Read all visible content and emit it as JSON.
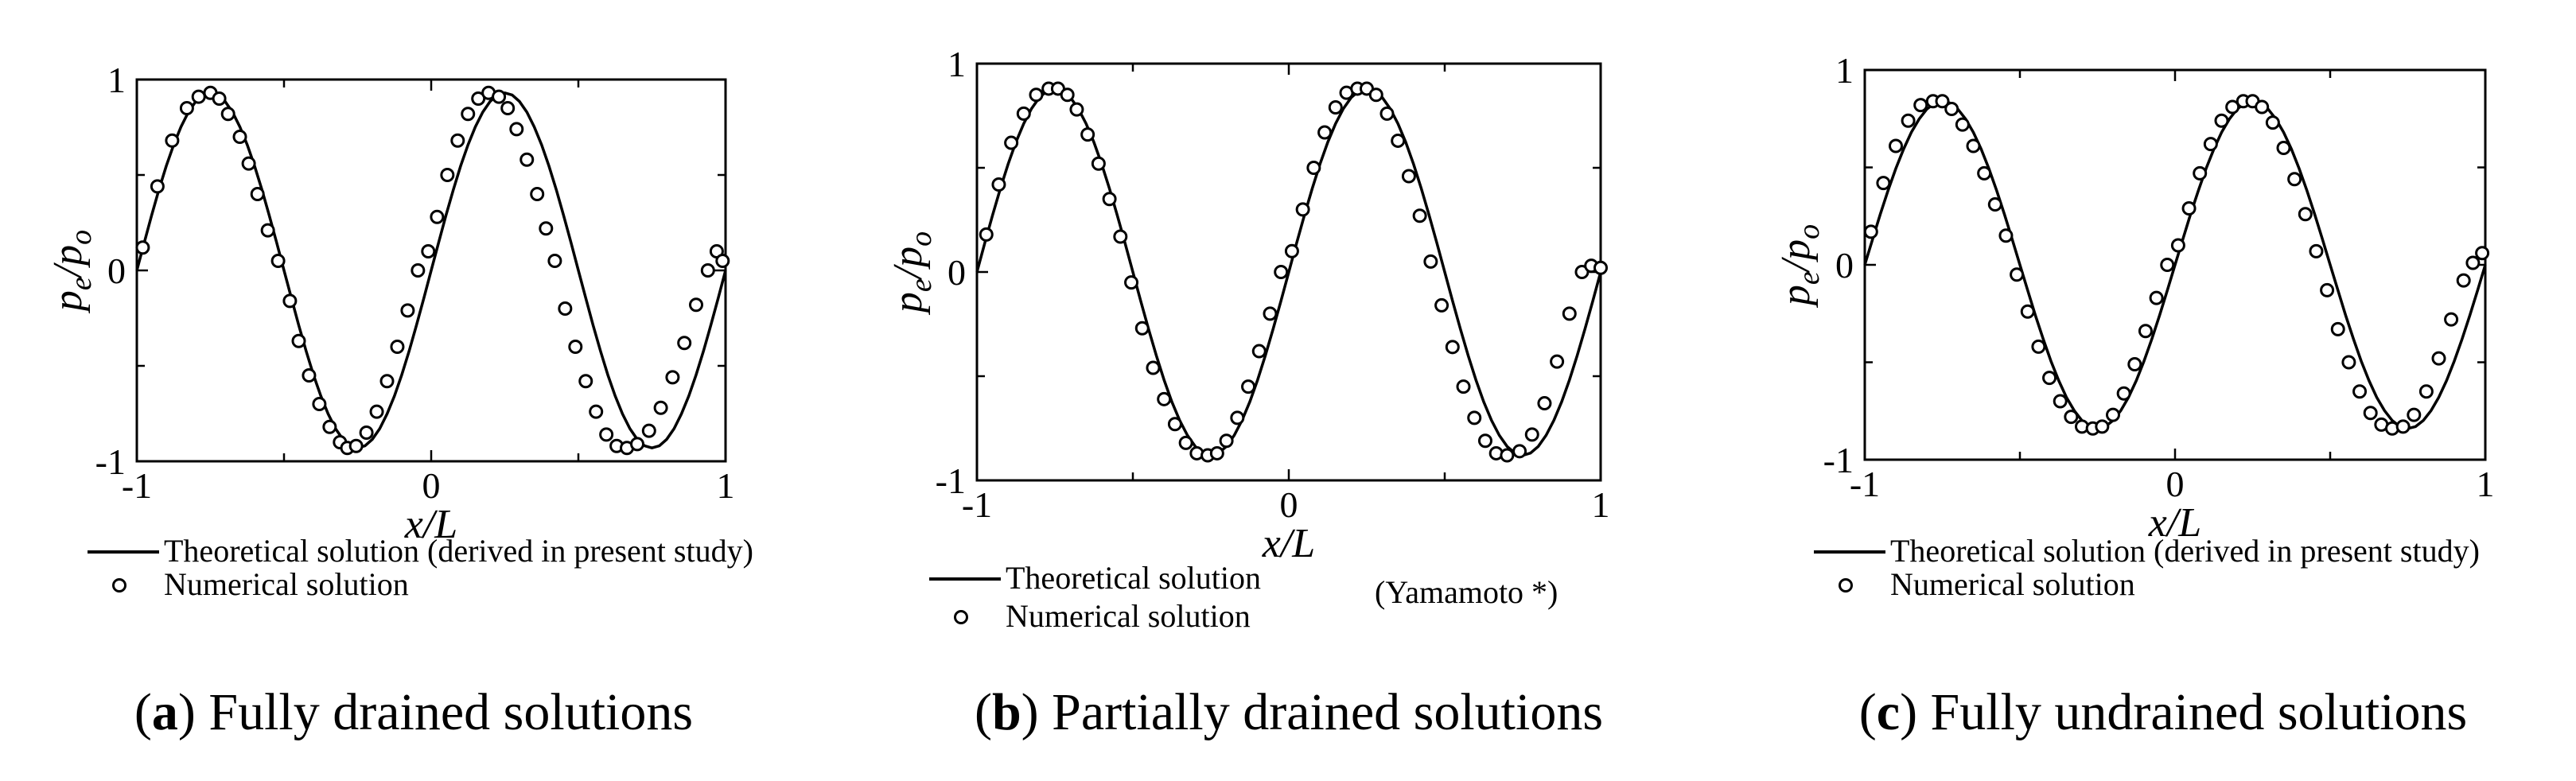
{
  "chart_data": [
    {
      "type": "line",
      "panel_label": "a",
      "caption_text": "Fully drained solutions",
      "xlabel": "x/L",
      "ylabel": "p_e/p_o",
      "xlim": [
        -1,
        1
      ],
      "ylim": [
        -1,
        1
      ],
      "xticks": [
        "-1",
        "0",
        "1"
      ],
      "yticks": [
        "-1",
        "0",
        "1"
      ],
      "amplitude": 0.93,
      "theoretical_label": "Theoretical solution (derived in present study)",
      "numerical_label": "Numerical solution",
      "series": [
        {
          "name": "Theoretical solution",
          "kind": "line",
          "x": [
            -1.0,
            -0.975,
            -0.95,
            -0.925,
            -0.9,
            -0.875,
            -0.85,
            -0.825,
            -0.8,
            -0.775,
            -0.75,
            -0.725,
            -0.7,
            -0.675,
            -0.65,
            -0.625,
            -0.6,
            -0.575,
            -0.55,
            -0.525,
            -0.5,
            -0.475,
            -0.45,
            -0.425,
            -0.4,
            -0.375,
            -0.35,
            -0.325,
            -0.3,
            -0.275,
            -0.25,
            -0.225,
            -0.2,
            -0.175,
            -0.15,
            -0.125,
            -0.1,
            -0.075,
            -0.05,
            -0.025,
            0.0,
            0.025,
            0.05,
            0.075,
            0.1,
            0.125,
            0.15,
            0.175,
            0.2,
            0.225,
            0.25,
            0.275,
            0.3,
            0.325,
            0.35,
            0.375,
            0.4,
            0.425,
            0.45,
            0.475,
            0.5,
            0.525,
            0.55,
            0.575,
            0.6,
            0.625,
            0.65,
            0.675,
            0.7,
            0.725,
            0.75,
            0.775,
            0.8,
            0.825,
            0.85,
            0.875,
            0.9,
            0.925,
            0.95,
            0.975,
            1.0
          ],
          "y": [
            0.0,
            0.145,
            0.287,
            0.422,
            0.547,
            0.658,
            0.752,
            0.829,
            0.885,
            0.919,
            0.93,
            0.919,
            0.885,
            0.829,
            0.752,
            0.658,
            0.547,
            0.422,
            0.287,
            0.145,
            0.0,
            -0.145,
            -0.287,
            -0.422,
            -0.547,
            -0.658,
            -0.752,
            -0.829,
            -0.885,
            -0.919,
            -0.93,
            -0.919,
            -0.885,
            -0.829,
            -0.752,
            -0.658,
            -0.547,
            -0.422,
            -0.287,
            -0.145,
            0.0,
            0.145,
            0.287,
            0.422,
            0.547,
            0.658,
            0.752,
            0.829,
            0.885,
            0.919,
            0.93,
            0.919,
            0.885,
            0.829,
            0.752,
            0.658,
            0.547,
            0.422,
            0.287,
            0.145,
            0.0,
            -0.145,
            -0.287,
            -0.422,
            -0.547,
            -0.658,
            -0.752,
            -0.829,
            -0.885,
            -0.919,
            -0.93,
            -0.919,
            -0.885,
            -0.829,
            -0.752,
            -0.658,
            -0.547,
            -0.422,
            -0.287,
            -0.145,
            0.0
          ]
        },
        {
          "name": "Numerical solution",
          "kind": "markers",
          "x": [
            -0.98,
            -0.93,
            -0.88,
            -0.83,
            -0.79,
            -0.75,
            -0.72,
            -0.69,
            -0.65,
            -0.62,
            -0.59,
            -0.555,
            -0.52,
            -0.48,
            -0.45,
            -0.415,
            -0.38,
            -0.345,
            -0.31,
            -0.285,
            -0.255,
            -0.22,
            -0.185,
            -0.15,
            -0.115,
            -0.08,
            -0.045,
            -0.01,
            0.02,
            0.055,
            0.09,
            0.125,
            0.16,
            0.195,
            0.23,
            0.26,
            0.29,
            0.325,
            0.36,
            0.39,
            0.42,
            0.455,
            0.49,
            0.525,
            0.56,
            0.595,
            0.63,
            0.665,
            0.7,
            0.74,
            0.78,
            0.82,
            0.86,
            0.9,
            0.94,
            0.97,
            0.99
          ],
          "y": [
            0.12,
            0.44,
            0.68,
            0.85,
            0.91,
            0.93,
            0.9,
            0.82,
            0.7,
            0.56,
            0.4,
            0.21,
            0.05,
            -0.16,
            -0.37,
            -0.55,
            -0.7,
            -0.82,
            -0.9,
            -0.93,
            -0.92,
            -0.85,
            -0.74,
            -0.58,
            -0.4,
            -0.21,
            0.0,
            0.1,
            0.28,
            0.5,
            0.68,
            0.82,
            0.9,
            0.93,
            0.91,
            0.85,
            0.74,
            0.58,
            0.4,
            0.22,
            0.05,
            -0.2,
            -0.4,
            -0.58,
            -0.74,
            -0.86,
            -0.92,
            -0.93,
            -0.91,
            -0.84,
            -0.72,
            -0.56,
            -0.38,
            -0.18,
            0.0,
            0.1,
            0.05
          ]
        }
      ]
    },
    {
      "type": "line",
      "panel_label": "b",
      "caption_text": "Partially drained solutions",
      "xlabel": "x/L",
      "ylabel": "p_e/p_o",
      "xlim": [
        -1,
        1
      ],
      "ylim": [
        -1,
        1
      ],
      "xticks": [
        "-1",
        "0",
        "1"
      ],
      "yticks": [
        "-1",
        "0",
        "1"
      ],
      "amplitude": 0.88,
      "theoretical_label": "Theoretical solution",
      "numerical_label": "Numerical solution",
      "extra_label": "(Yamamoto *)",
      "series": [
        {
          "name": "Theoretical solution",
          "kind": "line",
          "x": [
            -1.0,
            -0.975,
            -0.95,
            -0.925,
            -0.9,
            -0.875,
            -0.85,
            -0.825,
            -0.8,
            -0.775,
            -0.75,
            -0.725,
            -0.7,
            -0.675,
            -0.65,
            -0.625,
            -0.6,
            -0.575,
            -0.55,
            -0.525,
            -0.5,
            -0.475,
            -0.45,
            -0.425,
            -0.4,
            -0.375,
            -0.35,
            -0.325,
            -0.3,
            -0.275,
            -0.25,
            -0.225,
            -0.2,
            -0.175,
            -0.15,
            -0.125,
            -0.1,
            -0.075,
            -0.05,
            -0.025,
            0.0,
            0.025,
            0.05,
            0.075,
            0.1,
            0.125,
            0.15,
            0.175,
            0.2,
            0.225,
            0.25,
            0.275,
            0.3,
            0.325,
            0.35,
            0.375,
            0.4,
            0.425,
            0.45,
            0.475,
            0.5,
            0.525,
            0.55,
            0.575,
            0.6,
            0.625,
            0.65,
            0.675,
            0.7,
            0.725,
            0.75,
            0.775,
            0.8,
            0.825,
            0.85,
            0.875,
            0.9,
            0.925,
            0.95,
            0.975,
            1.0
          ],
          "y": [
            0.0,
            0.138,
            0.272,
            0.4,
            0.518,
            0.623,
            0.712,
            0.784,
            0.837,
            0.869,
            0.88,
            0.869,
            0.837,
            0.784,
            0.712,
            0.623,
            0.518,
            0.4,
            0.272,
            0.138,
            0.0,
            -0.138,
            -0.272,
            -0.4,
            -0.518,
            -0.623,
            -0.712,
            -0.784,
            -0.837,
            -0.869,
            -0.88,
            -0.869,
            -0.837,
            -0.784,
            -0.712,
            -0.623,
            -0.518,
            -0.4,
            -0.272,
            -0.138,
            0.0,
            0.138,
            0.272,
            0.4,
            0.518,
            0.623,
            0.712,
            0.784,
            0.837,
            0.869,
            0.88,
            0.869,
            0.837,
            0.784,
            0.712,
            0.623,
            0.518,
            0.4,
            0.272,
            0.138,
            0.0,
            -0.138,
            -0.272,
            -0.4,
            -0.518,
            -0.623,
            -0.712,
            -0.784,
            -0.837,
            -0.869,
            -0.88,
            -0.869,
            -0.837,
            -0.784,
            -0.712,
            -0.623,
            -0.518,
            -0.4,
            -0.272,
            -0.138,
            0.0
          ]
        },
        {
          "name": "Numerical solution",
          "kind": "markers",
          "x": [
            -0.97,
            -0.93,
            -0.89,
            -0.85,
            -0.81,
            -0.77,
            -0.74,
            -0.71,
            -0.68,
            -0.645,
            -0.61,
            -0.575,
            -0.54,
            -0.505,
            -0.47,
            -0.435,
            -0.4,
            -0.365,
            -0.33,
            -0.295,
            -0.26,
            -0.23,
            -0.2,
            -0.165,
            -0.13,
            -0.095,
            -0.06,
            -0.025,
            0.01,
            0.045,
            0.08,
            0.115,
            0.15,
            0.185,
            0.22,
            0.25,
            0.28,
            0.315,
            0.35,
            0.385,
            0.42,
            0.455,
            0.49,
            0.525,
            0.56,
            0.595,
            0.63,
            0.665,
            0.7,
            0.74,
            0.78,
            0.82,
            0.86,
            0.9,
            0.94,
            0.97,
            1.0
          ],
          "y": [
            0.18,
            0.42,
            0.62,
            0.76,
            0.85,
            0.88,
            0.88,
            0.85,
            0.78,
            0.66,
            0.52,
            0.35,
            0.17,
            -0.05,
            -0.27,
            -0.46,
            -0.61,
            -0.73,
            -0.82,
            -0.87,
            -0.88,
            -0.87,
            -0.81,
            -0.7,
            -0.55,
            -0.38,
            -0.2,
            0.0,
            0.1,
            0.3,
            0.5,
            0.67,
            0.79,
            0.86,
            0.88,
            0.88,
            0.85,
            0.76,
            0.63,
            0.46,
            0.27,
            0.05,
            -0.16,
            -0.36,
            -0.55,
            -0.7,
            -0.81,
            -0.87,
            -0.88,
            -0.86,
            -0.78,
            -0.63,
            -0.43,
            -0.2,
            0.0,
            0.03,
            0.02
          ]
        }
      ]
    },
    {
      "type": "line",
      "panel_label": "c",
      "caption_text": "Fully undrained solutions",
      "xlabel": "x/L",
      "ylabel": "p_e/p_o",
      "xlim": [
        -1,
        1
      ],
      "ylim": [
        -1,
        1
      ],
      "xticks": [
        "-1",
        "0",
        "1"
      ],
      "yticks": [
        "-1",
        "0",
        "1"
      ],
      "amplitude": 0.84,
      "theoretical_label": "Theoretical solution (derived in present study)",
      "numerical_label": "Numerical solution",
      "series": [
        {
          "name": "Theoretical solution",
          "kind": "line",
          "x": [
            -1.0,
            -0.975,
            -0.95,
            -0.925,
            -0.9,
            -0.875,
            -0.85,
            -0.825,
            -0.8,
            -0.775,
            -0.75,
            -0.725,
            -0.7,
            -0.675,
            -0.65,
            -0.625,
            -0.6,
            -0.575,
            -0.55,
            -0.525,
            -0.5,
            -0.475,
            -0.45,
            -0.425,
            -0.4,
            -0.375,
            -0.35,
            -0.325,
            -0.3,
            -0.275,
            -0.25,
            -0.225,
            -0.2,
            -0.175,
            -0.15,
            -0.125,
            -0.1,
            -0.075,
            -0.05,
            -0.025,
            0.0,
            0.025,
            0.05,
            0.075,
            0.1,
            0.125,
            0.15,
            0.175,
            0.2,
            0.225,
            0.25,
            0.275,
            0.3,
            0.325,
            0.35,
            0.375,
            0.4,
            0.425,
            0.45,
            0.475,
            0.5,
            0.525,
            0.55,
            0.575,
            0.6,
            0.625,
            0.65,
            0.675,
            0.7,
            0.725,
            0.75,
            0.775,
            0.8,
            0.825,
            0.85,
            0.875,
            0.9,
            0.925,
            0.95,
            0.975,
            1.0
          ],
          "y": [
            0.0,
            0.131,
            0.26,
            0.381,
            0.494,
            0.594,
            0.68,
            0.748,
            0.799,
            0.83,
            0.84,
            0.83,
            0.799,
            0.748,
            0.68,
            0.594,
            0.494,
            0.381,
            0.26,
            0.131,
            0.0,
            -0.131,
            -0.26,
            -0.381,
            -0.494,
            -0.594,
            -0.68,
            -0.748,
            -0.799,
            -0.83,
            -0.84,
            -0.83,
            -0.799,
            -0.748,
            -0.68,
            -0.594,
            -0.494,
            -0.381,
            -0.26,
            -0.131,
            0.0,
            0.131,
            0.26,
            0.381,
            0.494,
            0.594,
            0.68,
            0.748,
            0.799,
            0.83,
            0.84,
            0.83,
            0.799,
            0.748,
            0.68,
            0.594,
            0.494,
            0.381,
            0.26,
            0.131,
            0.0,
            -0.131,
            -0.26,
            -0.381,
            -0.494,
            -0.594,
            -0.68,
            -0.748,
            -0.799,
            -0.83,
            -0.84,
            -0.83,
            -0.799,
            -0.748,
            -0.68,
            -0.594,
            -0.494,
            -0.381,
            -0.26,
            -0.131,
            0.0
          ]
        },
        {
          "name": "Numerical solution",
          "kind": "markers",
          "x": [
            -0.98,
            -0.94,
            -0.9,
            -0.86,
            -0.82,
            -0.78,
            -0.75,
            -0.72,
            -0.685,
            -0.65,
            -0.615,
            -0.58,
            -0.545,
            -0.51,
            -0.475,
            -0.44,
            -0.405,
            -0.37,
            -0.335,
            -0.3,
            -0.265,
            -0.235,
            -0.2,
            -0.165,
            -0.13,
            -0.095,
            -0.06,
            -0.025,
            0.01,
            0.045,
            0.08,
            0.115,
            0.15,
            0.185,
            0.22,
            0.25,
            0.28,
            0.315,
            0.35,
            0.385,
            0.42,
            0.455,
            0.49,
            0.525,
            0.56,
            0.595,
            0.63,
            0.665,
            0.7,
            0.735,
            0.77,
            0.81,
            0.85,
            0.89,
            0.93,
            0.96,
            0.99
          ],
          "y": [
            0.17,
            0.42,
            0.61,
            0.74,
            0.82,
            0.84,
            0.84,
            0.8,
            0.72,
            0.61,
            0.47,
            0.31,
            0.15,
            -0.05,
            -0.24,
            -0.42,
            -0.58,
            -0.7,
            -0.78,
            -0.83,
            -0.84,
            -0.83,
            -0.77,
            -0.66,
            -0.51,
            -0.34,
            -0.17,
            0.0,
            0.1,
            0.29,
            0.47,
            0.62,
            0.74,
            0.81,
            0.84,
            0.84,
            0.81,
            0.73,
            0.6,
            0.44,
            0.26,
            0.07,
            -0.13,
            -0.33,
            -0.5,
            -0.65,
            -0.76,
            -0.82,
            -0.84,
            -0.83,
            -0.77,
            -0.65,
            -0.48,
            -0.28,
            -0.08,
            0.01,
            0.06
          ]
        }
      ]
    }
  ]
}
